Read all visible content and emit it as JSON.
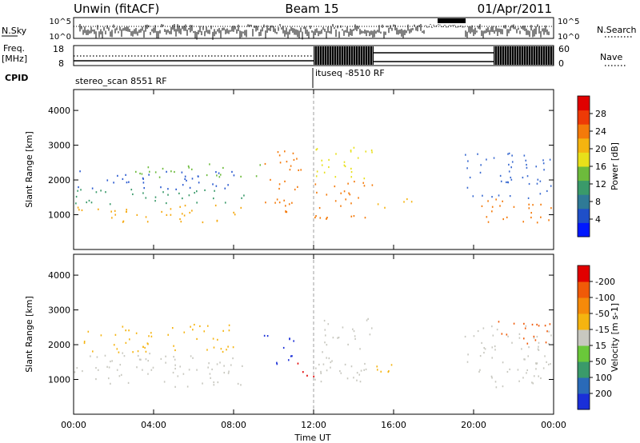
{
  "header": {
    "station": "Unwin (fitACF)",
    "beam": "Beam 15",
    "date": "01/Apr/2011"
  },
  "summary": {
    "nsky_label": "N.Sky",
    "nsky_ticks": [
      "10^5",
      "10^0"
    ],
    "nsearch_label": "N.Search",
    "freq_label": "Freq.",
    "freq_unit": "[MHz]",
    "freq_ticks": [
      "18",
      "8"
    ],
    "nave_ticks": [
      "60",
      "0"
    ],
    "nave_label": "Nave",
    "cpid_label": "CPID",
    "cpid_segments": [
      {
        "label": "stereo_scan 8551 RF",
        "start": "00:00"
      },
      {
        "label": "ituseq -8510 RF",
        "start": "12:00"
      }
    ]
  },
  "chart_data": [
    {
      "type": "heatmap",
      "ylabel": "Slant Range [km]",
      "xlabel": "Time UT",
      "xticks": [
        "00:00",
        "04:00",
        "08:00",
        "12:00",
        "16:00",
        "20:00",
        "00:00"
      ],
      "xlim_hours": [
        0,
        24
      ],
      "ylim": [
        0,
        4600
      ],
      "yticks": [
        1000,
        2000,
        3000,
        4000
      ],
      "colorbar": {
        "label": "Power [dB]",
        "ticks": [
          "4",
          "8",
          "12",
          "16",
          "20",
          "24",
          "28"
        ],
        "colors": [
          "#0018ff",
          "#1f4fc8",
          "#2f7a96",
          "#3a9a6a",
          "#6dbb3c",
          "#e8e01a",
          "#f5b410",
          "#f47a0a",
          "#ee3a06",
          "#e10000"
        ]
      },
      "bands": [
        {
          "t0": 0.0,
          "t1": 8.5,
          "r0": 800,
          "r1": 1300,
          "c": "#f5a80e"
        },
        {
          "t0": 0.0,
          "t1": 8.5,
          "r0": 1300,
          "r1": 1750,
          "c": "#3a9a6a"
        },
        {
          "t0": 0.2,
          "t1": 8.2,
          "r0": 1750,
          "r1": 2300,
          "c": "#2a5ad0"
        },
        {
          "t0": 3.0,
          "t1": 9.5,
          "r0": 2100,
          "r1": 2500,
          "c": "#6dbb3c"
        },
        {
          "t0": 9.5,
          "t1": 11.5,
          "r0": 1100,
          "r1": 2900,
          "c": "#f47a0a"
        },
        {
          "t0": 12.0,
          "t1": 15.0,
          "r0": 900,
          "r1": 2000,
          "c": "#f47a0a"
        },
        {
          "t0": 12.0,
          "t1": 15.0,
          "r0": 2000,
          "r1": 3000,
          "c": "#e8e01a"
        },
        {
          "t0": 15.0,
          "t1": 17.0,
          "r0": 1200,
          "r1": 1500,
          "c": "#f5b410"
        },
        {
          "t0": 20.0,
          "t1": 23.9,
          "r0": 800,
          "r1": 1500,
          "c": "#f47a0a"
        },
        {
          "t0": 19.5,
          "t1": 23.9,
          "r0": 1500,
          "r1": 2800,
          "c": "#3a6ad0"
        }
      ]
    },
    {
      "type": "heatmap",
      "ylabel": "Slant Range [km]",
      "xlabel": "Time UT",
      "xticks": [
        "00:00",
        "04:00",
        "08:00",
        "12:00",
        "16:00",
        "20:00",
        "00:00"
      ],
      "xlim_hours": [
        0,
        24
      ],
      "ylim": [
        0,
        4600
      ],
      "yticks": [
        1000,
        2000,
        3000,
        4000
      ],
      "colorbar": {
        "label": "Velocity [m s-1]",
        "ticks": [
          "200",
          "100",
          "50",
          "15",
          "-15",
          "-50",
          "-100",
          "-200"
        ],
        "colors": [
          "#1a2fd8",
          "#2a6ab8",
          "#3a9a6a",
          "#6ac83a",
          "#c8c8c0",
          "#f5b410",
          "#f58a0a",
          "#f05a08",
          "#e10000"
        ]
      },
      "bands": [
        {
          "t0": 0.0,
          "t1": 8.5,
          "r0": 800,
          "r1": 1800,
          "c": "#c8c8c0"
        },
        {
          "t0": 0.5,
          "t1": 8.0,
          "r0": 1800,
          "r1": 2600,
          "c": "#f5b410"
        },
        {
          "t0": 9.5,
          "t1": 11.0,
          "r0": 1400,
          "r1": 2300,
          "c": "#1a2fd8"
        },
        {
          "t0": 11.0,
          "t1": 12.0,
          "r0": 1000,
          "r1": 1500,
          "c": "#e10000"
        },
        {
          "t0": 12.0,
          "t1": 15.0,
          "r0": 900,
          "r1": 2800,
          "c": "#c8c8c0"
        },
        {
          "t0": 14.5,
          "t1": 17.0,
          "r0": 1200,
          "r1": 1500,
          "c": "#f5b410"
        },
        {
          "t0": 19.5,
          "t1": 23.9,
          "r0": 800,
          "r1": 2600,
          "c": "#c8c8c0"
        },
        {
          "t0": 21.0,
          "t1": 23.9,
          "r0": 2000,
          "r1": 2700,
          "c": "#f05a08"
        }
      ]
    }
  ]
}
